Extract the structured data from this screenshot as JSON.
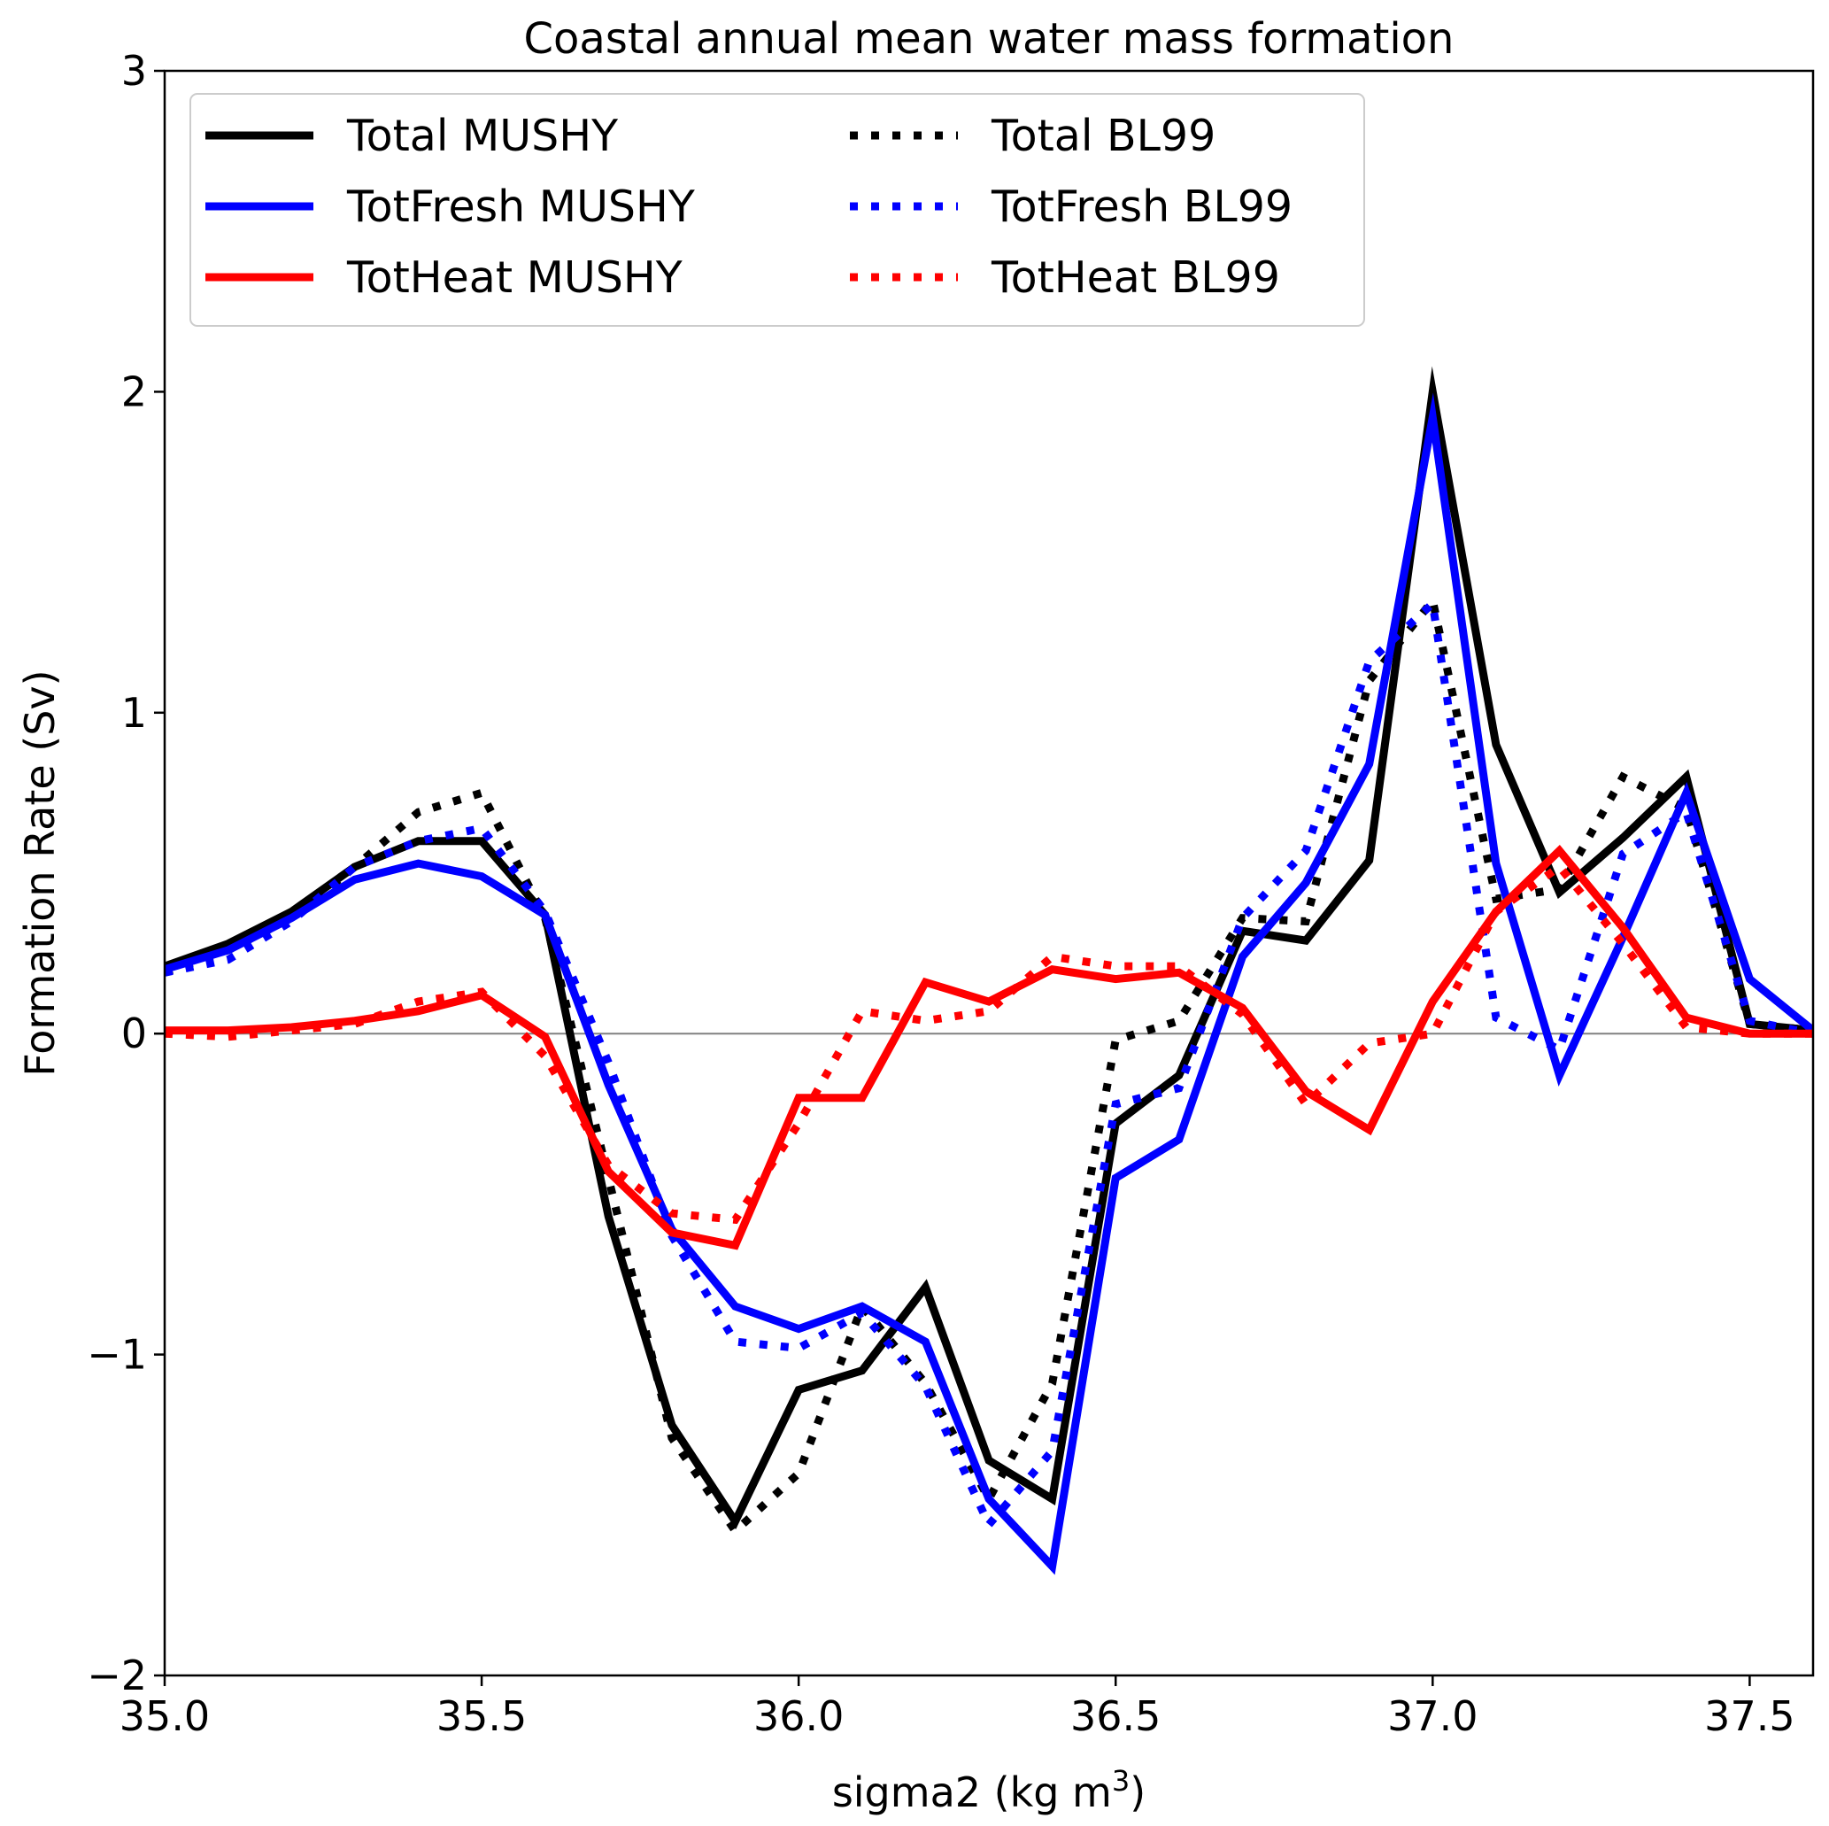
{
  "chart_data": {
    "type": "line",
    "title": "Coastal annual mean water mass formation",
    "xlabel": "sigma2 (kg m",
    "xlabel_sup": "3",
    "xlabel_close": ")",
    "ylabel": "Formation Rate (Sv)",
    "xlim": [
      35.0,
      37.6
    ],
    "ylim": [
      -2,
      3
    ],
    "xticks": [
      35.0,
      35.5,
      36.0,
      36.5,
      37.0,
      37.5
    ],
    "xtick_labels": [
      "35.0",
      "35.5",
      "36.0",
      "36.5",
      "37.0",
      "37.5"
    ],
    "yticks": [
      -2,
      -1,
      0,
      1,
      2,
      3
    ],
    "ytick_labels": [
      "−2",
      "−1",
      "0",
      "1",
      "2",
      "3"
    ],
    "zero_line": true,
    "grid": false,
    "legend_position": "top-left",
    "x": [
      35.0,
      35.1,
      35.2,
      35.3,
      35.4,
      35.5,
      35.6,
      35.7,
      35.8,
      35.9,
      36.0,
      36.1,
      36.2,
      36.3,
      36.4,
      36.5,
      36.6,
      36.7,
      36.8,
      36.9,
      37.0,
      37.1,
      37.2,
      37.3,
      37.4,
      37.5,
      37.6
    ],
    "series": [
      {
        "name": "Total MUSHY",
        "color": "#000000",
        "style": "solid",
        "values": [
          0.21,
          0.28,
          0.38,
          0.52,
          0.6,
          0.6,
          0.37,
          -0.57,
          -1.22,
          -1.52,
          -1.11,
          -1.05,
          -0.79,
          -1.33,
          -1.45,
          -0.28,
          -0.13,
          0.32,
          0.29,
          0.54,
          2.0,
          0.9,
          0.44,
          0.61,
          0.8,
          0.03,
          0.01
        ]
      },
      {
        "name": "Total BL99",
        "color": "#000000",
        "style": "dotted",
        "values": [
          0.19,
          0.26,
          0.36,
          0.52,
          0.69,
          0.75,
          0.36,
          -0.45,
          -1.26,
          -1.55,
          -1.37,
          -0.85,
          -1.09,
          -1.45,
          -1.09,
          -0.02,
          0.04,
          0.36,
          0.35,
          1.1,
          1.35,
          0.42,
          0.45,
          0.8,
          0.7,
          0.03,
          0.01
        ]
      },
      {
        "name": "TotFresh MUSHY",
        "color": "#0000ff",
        "style": "solid",
        "values": [
          0.2,
          0.26,
          0.36,
          0.48,
          0.53,
          0.49,
          0.37,
          -0.16,
          -0.61,
          -0.85,
          -0.92,
          -0.85,
          -0.96,
          -1.45,
          -1.66,
          -0.45,
          -0.33,
          0.24,
          0.47,
          0.84,
          1.92,
          0.53,
          -0.13,
          0.3,
          0.75,
          0.17,
          0.01
        ]
      },
      {
        "name": "TotFresh BL99",
        "color": "#0000ff",
        "style": "dotted",
        "values": [
          0.19,
          0.23,
          0.35,
          0.52,
          0.6,
          0.64,
          0.38,
          -0.09,
          -0.63,
          -0.96,
          -0.98,
          -0.87,
          -1.1,
          -1.53,
          -1.3,
          -0.22,
          -0.17,
          0.36,
          0.57,
          1.16,
          1.34,
          0.05,
          -0.05,
          0.56,
          0.69,
          0.04,
          0.0
        ]
      },
      {
        "name": "TotHeat MUSHY",
        "color": "#ff0000",
        "style": "solid",
        "values": [
          0.01,
          0.01,
          0.02,
          0.04,
          0.07,
          0.12,
          -0.01,
          -0.43,
          -0.62,
          -0.66,
          -0.2,
          -0.2,
          0.16,
          0.1,
          0.2,
          0.17,
          0.19,
          0.08,
          -0.18,
          -0.3,
          0.1,
          0.38,
          0.57,
          0.33,
          0.05,
          0.0,
          0.0
        ]
      },
      {
        "name": "TotHeat BL99",
        "color": "#ff0000",
        "style": "dotted",
        "values": [
          0.0,
          -0.01,
          0.01,
          0.03,
          0.1,
          0.13,
          -0.07,
          -0.41,
          -0.56,
          -0.58,
          -0.28,
          0.07,
          0.04,
          0.07,
          0.24,
          0.21,
          0.21,
          0.06,
          -0.22,
          -0.03,
          0.0,
          0.38,
          0.52,
          0.28,
          0.02,
          0.0,
          0.0
        ]
      }
    ],
    "legend": {
      "columns": [
        [
          "Total MUSHY",
          "TotFresh MUSHY",
          "TotHeat MUSHY"
        ],
        [
          "Total BL99",
          "TotFresh BL99",
          "TotHeat BL99"
        ]
      ]
    }
  }
}
